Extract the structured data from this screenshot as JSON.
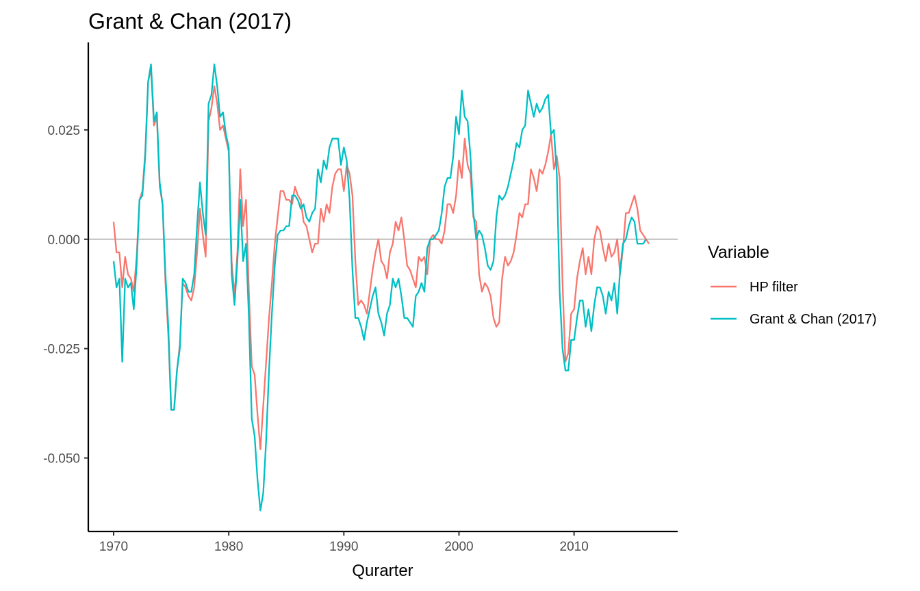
{
  "chart_data": {
    "type": "line",
    "title": "Grant & Chan (2017)",
    "xlabel": "Qurarter",
    "ylabel": "",
    "xlim": [
      1967.8,
      2019.0
    ],
    "ylim": [
      -0.0668,
      0.045
    ],
    "x_ticks": [
      1970,
      1980,
      1990,
      2000,
      2010
    ],
    "x_tick_labels": [
      "1970",
      "1980",
      "1990",
      "2000",
      "2010"
    ],
    "y_ticks": [
      0.025,
      0.0,
      -0.025,
      -0.05
    ],
    "y_tick_labels": [
      "0.025",
      "0.000",
      "-0.025",
      "-0.050"
    ],
    "reference_line": 0,
    "grid": false,
    "legend": {
      "title": "Variable",
      "position": "right",
      "entries": [
        "HP filter",
        "Grant & Chan (2017)"
      ]
    },
    "x_start": 1970.0,
    "x_step": 0.25,
    "series": [
      {
        "name": "HP filter",
        "color": "#F8766D",
        "values": [
          0.004,
          -0.003,
          -0.003,
          -0.011,
          -0.004,
          -0.008,
          -0.009,
          -0.012,
          -0.004,
          0.009,
          0.011,
          0.02,
          0.036,
          0.039,
          0.026,
          0.028,
          0.012,
          0.008,
          -0.01,
          -0.022,
          -0.039,
          -0.039,
          -0.03,
          -0.024,
          -0.01,
          -0.011,
          -0.013,
          -0.014,
          -0.011,
          -0.003,
          0.007,
          0.001,
          -0.004,
          0.027,
          0.03,
          0.035,
          0.031,
          0.025,
          0.026,
          0.023,
          0.02,
          -0.005,
          -0.013,
          -0.003,
          0.016,
          0.003,
          0.009,
          -0.012,
          -0.029,
          -0.031,
          -0.04,
          -0.048,
          -0.038,
          -0.028,
          -0.018,
          -0.01,
          -0.001,
          0.005,
          0.011,
          0.011,
          0.009,
          0.009,
          0.008,
          0.012,
          0.01,
          0.009,
          0.004,
          0.003,
          0.0,
          -0.003,
          -0.001,
          -0.001,
          0.007,
          0.004,
          0.008,
          0.006,
          0.012,
          0.015,
          0.016,
          0.016,
          0.011,
          0.017,
          0.015,
          0.01,
          -0.005,
          -0.015,
          -0.014,
          -0.015,
          -0.017,
          -0.012,
          -0.007,
          -0.003,
          0.0,
          -0.005,
          -0.006,
          -0.009,
          -0.003,
          -0.001,
          0.004,
          0.002,
          0.005,
          0.0,
          -0.006,
          -0.007,
          -0.009,
          -0.011,
          -0.004,
          -0.005,
          -0.004,
          -0.008,
          0.0,
          0.001,
          0.0,
          0.0,
          -0.001,
          0.002,
          0.008,
          0.008,
          0.006,
          0.01,
          0.018,
          0.014,
          0.023,
          0.017,
          0.015,
          0.005,
          0.004,
          -0.008,
          -0.012,
          -0.01,
          -0.011,
          -0.013,
          -0.018,
          -0.02,
          -0.019,
          -0.009,
          -0.004,
          -0.006,
          -0.005,
          -0.003,
          0.001,
          0.006,
          0.005,
          0.008,
          0.008,
          0.016,
          0.014,
          0.011,
          0.016,
          0.015,
          0.017,
          0.02,
          0.024,
          0.016,
          0.019,
          0.014,
          -0.01,
          -0.028,
          -0.026,
          -0.017,
          -0.016,
          -0.009,
          -0.005,
          -0.002,
          -0.008,
          -0.004,
          -0.008,
          0.0,
          0.003,
          0.002,
          -0.002,
          -0.005,
          -0.001,
          -0.004,
          -0.003,
          0.0,
          -0.008,
          -0.002,
          0.006,
          0.006,
          0.008,
          0.01,
          0.007,
          0.002,
          0.001,
          0.0,
          -0.001
        ]
      },
      {
        "name": "Grant & Chan (2017)",
        "color": "#00BFC4",
        "values": [
          -0.005,
          -0.011,
          -0.009,
          -0.028,
          -0.009,
          -0.011,
          -0.01,
          -0.016,
          -0.006,
          0.009,
          0.01,
          0.019,
          0.036,
          0.04,
          0.027,
          0.029,
          0.013,
          0.008,
          -0.008,
          -0.02,
          -0.039,
          -0.039,
          -0.03,
          -0.025,
          -0.009,
          -0.01,
          -0.012,
          -0.012,
          -0.008,
          0.003,
          0.013,
          0.006,
          0.001,
          0.031,
          0.033,
          0.04,
          0.035,
          0.028,
          0.029,
          0.024,
          0.021,
          -0.008,
          -0.015,
          -0.005,
          0.009,
          -0.005,
          -0.001,
          -0.018,
          -0.041,
          -0.045,
          -0.055,
          -0.062,
          -0.058,
          -0.046,
          -0.03,
          -0.017,
          -0.006,
          0.001,
          0.002,
          0.002,
          0.003,
          0.003,
          0.01,
          0.01,
          0.009,
          0.007,
          0.008,
          0.005,
          0.004,
          0.006,
          0.007,
          0.016,
          0.013,
          0.018,
          0.016,
          0.021,
          0.023,
          0.023,
          0.023,
          0.017,
          0.021,
          0.018,
          0.009,
          -0.007,
          -0.018,
          -0.018,
          -0.02,
          -0.023,
          -0.019,
          -0.016,
          -0.013,
          -0.011,
          -0.017,
          -0.019,
          -0.022,
          -0.017,
          -0.015,
          -0.009,
          -0.011,
          -0.009,
          -0.013,
          -0.018,
          -0.018,
          -0.019,
          -0.02,
          -0.013,
          -0.012,
          -0.01,
          -0.012,
          -0.002,
          0.0,
          0.0,
          0.001,
          0.002,
          0.006,
          0.012,
          0.014,
          0.014,
          0.019,
          0.028,
          0.024,
          0.034,
          0.028,
          0.027,
          0.019,
          0.006,
          0.0,
          0.002,
          0.001,
          -0.002,
          -0.006,
          -0.007,
          -0.005,
          0.005,
          0.01,
          0.009,
          0.01,
          0.012,
          0.015,
          0.018,
          0.022,
          0.021,
          0.025,
          0.026,
          0.034,
          0.031,
          0.028,
          0.031,
          0.029,
          0.03,
          0.032,
          0.033,
          0.024,
          0.025,
          0.015,
          -0.012,
          -0.025,
          -0.03,
          -0.03,
          -0.023,
          -0.023,
          -0.018,
          -0.014,
          -0.014,
          -0.02,
          -0.016,
          -0.021,
          -0.015,
          -0.011,
          -0.011,
          -0.013,
          -0.017,
          -0.012,
          -0.014,
          -0.01,
          -0.017,
          -0.007,
          -0.001,
          0.0,
          0.003,
          0.005,
          0.004,
          -0.001,
          -0.001,
          -0.001,
          0.0
        ]
      }
    ]
  }
}
